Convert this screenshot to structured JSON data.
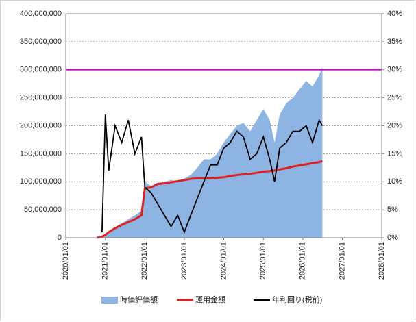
{
  "chart_data": {
    "type": "combo",
    "x": [
      "2020/10/15",
      "2020/12/01",
      "2021/01/01",
      "2021/02/01",
      "2021/04/01",
      "2021/06/01",
      "2021/08/01",
      "2021/10/01",
      "2021/12/01",
      "2022/01/01",
      "2022/03/01",
      "2022/05/01",
      "2022/07/01",
      "2022/09/01",
      "2022/11/01",
      "2023/01/01",
      "2023/03/01",
      "2023/05/01",
      "2023/07/01",
      "2023/09/01",
      "2023/11/01",
      "2024/01/01",
      "2024/03/01",
      "2024/05/01",
      "2024/07/01",
      "2024/09/01",
      "2024/11/01",
      "2025/01/01",
      "2025/03/01",
      "2025/04/15",
      "2025/06/01",
      "2025/08/01",
      "2025/10/01",
      "2025/12/01",
      "2026/02/01",
      "2026/04/01",
      "2026/06/01",
      "2026/07/01"
    ],
    "series": [
      {
        "name": "時価評価額",
        "type": "area",
        "color": "#8db4e2",
        "values": [
          0,
          2000000,
          6000000,
          12000000,
          19000000,
          26000000,
          33000000,
          40000000,
          48000000,
          100000000,
          92000000,
          98000000,
          100000000,
          103000000,
          100000000,
          106000000,
          112000000,
          125000000,
          140000000,
          140000000,
          150000000,
          170000000,
          185000000,
          200000000,
          205000000,
          190000000,
          210000000,
          230000000,
          210000000,
          170000000,
          220000000,
          240000000,
          250000000,
          265000000,
          280000000,
          270000000,
          290000000,
          305000000
        ]
      },
      {
        "name": "運用金額",
        "type": "line",
        "color": "#e02020",
        "values": [
          0,
          2000000,
          5000000,
          10000000,
          17000000,
          23000000,
          28000000,
          33000000,
          40000000,
          88000000,
          90000000,
          96000000,
          97000000,
          99000000,
          101000000,
          103000000,
          105000000,
          106000000,
          106000000,
          106000000,
          107000000,
          108000000,
          110000000,
          112000000,
          113000000,
          114000000,
          116000000,
          118000000,
          119000000,
          120000000,
          122000000,
          124000000,
          127000000,
          129000000,
          131000000,
          133000000,
          135000000,
          137000000
        ]
      },
      {
        "name": "年利回り(税前)",
        "type": "line",
        "color": "#000000",
        "axis": "y2",
        "values": [
          null,
          1,
          22,
          12,
          20,
          17,
          21,
          15,
          18,
          9,
          8,
          6,
          4,
          2,
          4,
          1,
          4,
          7,
          10,
          13,
          13,
          16,
          17,
          19,
          18,
          14,
          15,
          18,
          14,
          10,
          16,
          17,
          19,
          19,
          20,
          17,
          21,
          20
        ]
      }
    ],
    "reference_line": {
      "value": 30,
      "axis": "y2",
      "color": "#e000e0"
    },
    "xlim": [
      "2020/01/01",
      "2028/01/01"
    ],
    "xticks": [
      "2020/01/01",
      "2021/01/01",
      "2022/01/01",
      "2023/01/01",
      "2024/01/01",
      "2025/01/01",
      "2026/01/01",
      "2027/01/01",
      "2028/01/01"
    ],
    "ylim": [
      0,
      400000000
    ],
    "yticks": [
      {
        "value": 0,
        "label": "0"
      },
      {
        "value": 50000000,
        "label": "50,000,000"
      },
      {
        "value": 100000000,
        "label": "100,000,000"
      },
      {
        "value": 150000000,
        "label": "150,000,000"
      },
      {
        "value": 200000000,
        "label": "200,000,000"
      },
      {
        "value": 250000000,
        "label": "250,000,000"
      },
      {
        "value": 300000000,
        "label": "300,000,000"
      },
      {
        "value": 350000000,
        "label": "350,000,000"
      },
      {
        "value": 400000000,
        "label": "400,000,000"
      }
    ],
    "y2lim": [
      0,
      40
    ],
    "y2ticks": [
      {
        "value": 0,
        "label": "0%"
      },
      {
        "value": 5,
        "label": "5%"
      },
      {
        "value": 10,
        "label": "10%"
      },
      {
        "value": 15,
        "label": "15%"
      },
      {
        "value": 20,
        "label": "20%"
      },
      {
        "value": 25,
        "label": "25%"
      },
      {
        "value": 30,
        "label": "30%"
      },
      {
        "value": 35,
        "label": "35%"
      },
      {
        "value": 40,
        "label": "40%"
      }
    ],
    "grid": true
  }
}
